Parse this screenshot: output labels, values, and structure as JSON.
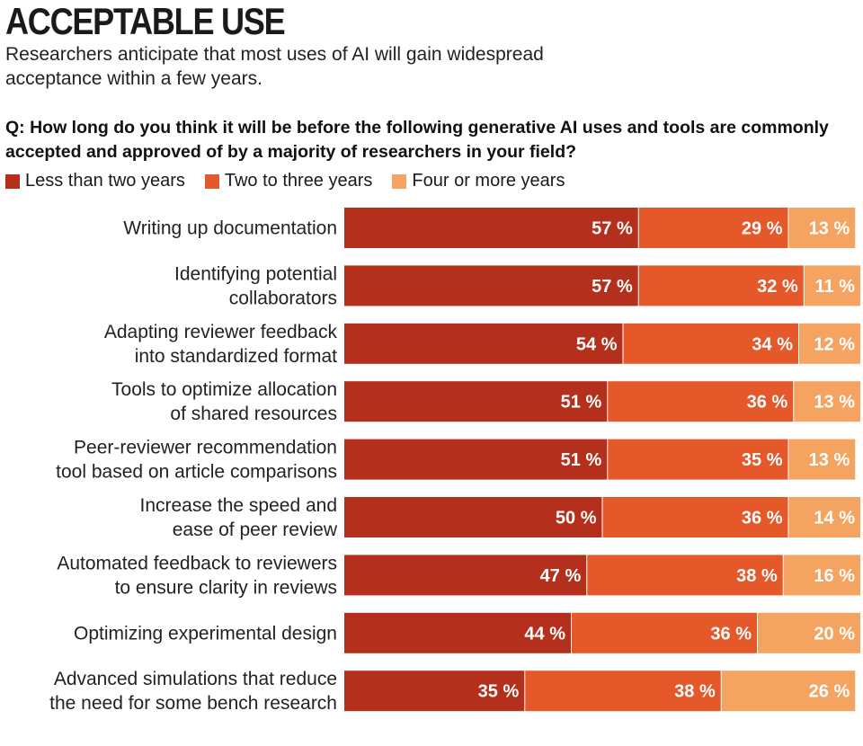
{
  "header": {
    "title": "ACCEPTABLE USE",
    "subtitle": "Researchers anticipate that most uses of AI will gain widespread acceptance within a few years.",
    "question": "Q: How long do you think it will be before the following generative AI uses and tools are commonly accepted and approved of by a majority of researchers in your field?"
  },
  "colors": {
    "less_than_two": "#b5301c",
    "two_to_three": "#e5582a",
    "four_or_more": "#f4a460"
  },
  "chart_data": {
    "type": "bar",
    "orientation": "horizontal",
    "stacked": true,
    "title": "ACCEPTABLE USE",
    "legend_position": "top-left",
    "categories": [
      [
        "Writing up documentation"
      ],
      [
        "Identifying potential",
        "collaborators"
      ],
      [
        "Adapting reviewer feedback",
        "into standardized format"
      ],
      [
        "Tools to optimize allocation",
        "of shared resources"
      ],
      [
        "Peer-reviewer recommendation",
        "tool based on article comparisons"
      ],
      [
        "Increase the speed and",
        "ease of peer review"
      ],
      [
        "Automated feedback to reviewers",
        "to ensure clarity in reviews"
      ],
      [
        "Optimizing experimental design"
      ],
      [
        "Advanced simulations that reduce",
        "the need for some bench research"
      ]
    ],
    "series": [
      {
        "name": "Less than two years",
        "color_key": "less_than_two",
        "values": [
          57,
          57,
          54,
          51,
          51,
          50,
          47,
          44,
          35
        ]
      },
      {
        "name": "Two to three years",
        "color_key": "two_to_three",
        "values": [
          29,
          32,
          34,
          36,
          35,
          36,
          38,
          36,
          38
        ]
      },
      {
        "name": "Four or more years",
        "color_key": "four_or_more",
        "values": [
          13,
          11,
          12,
          13,
          13,
          14,
          16,
          20,
          26
        ]
      }
    ],
    "value_suffix": " %",
    "xlim": [
      0,
      100
    ]
  }
}
